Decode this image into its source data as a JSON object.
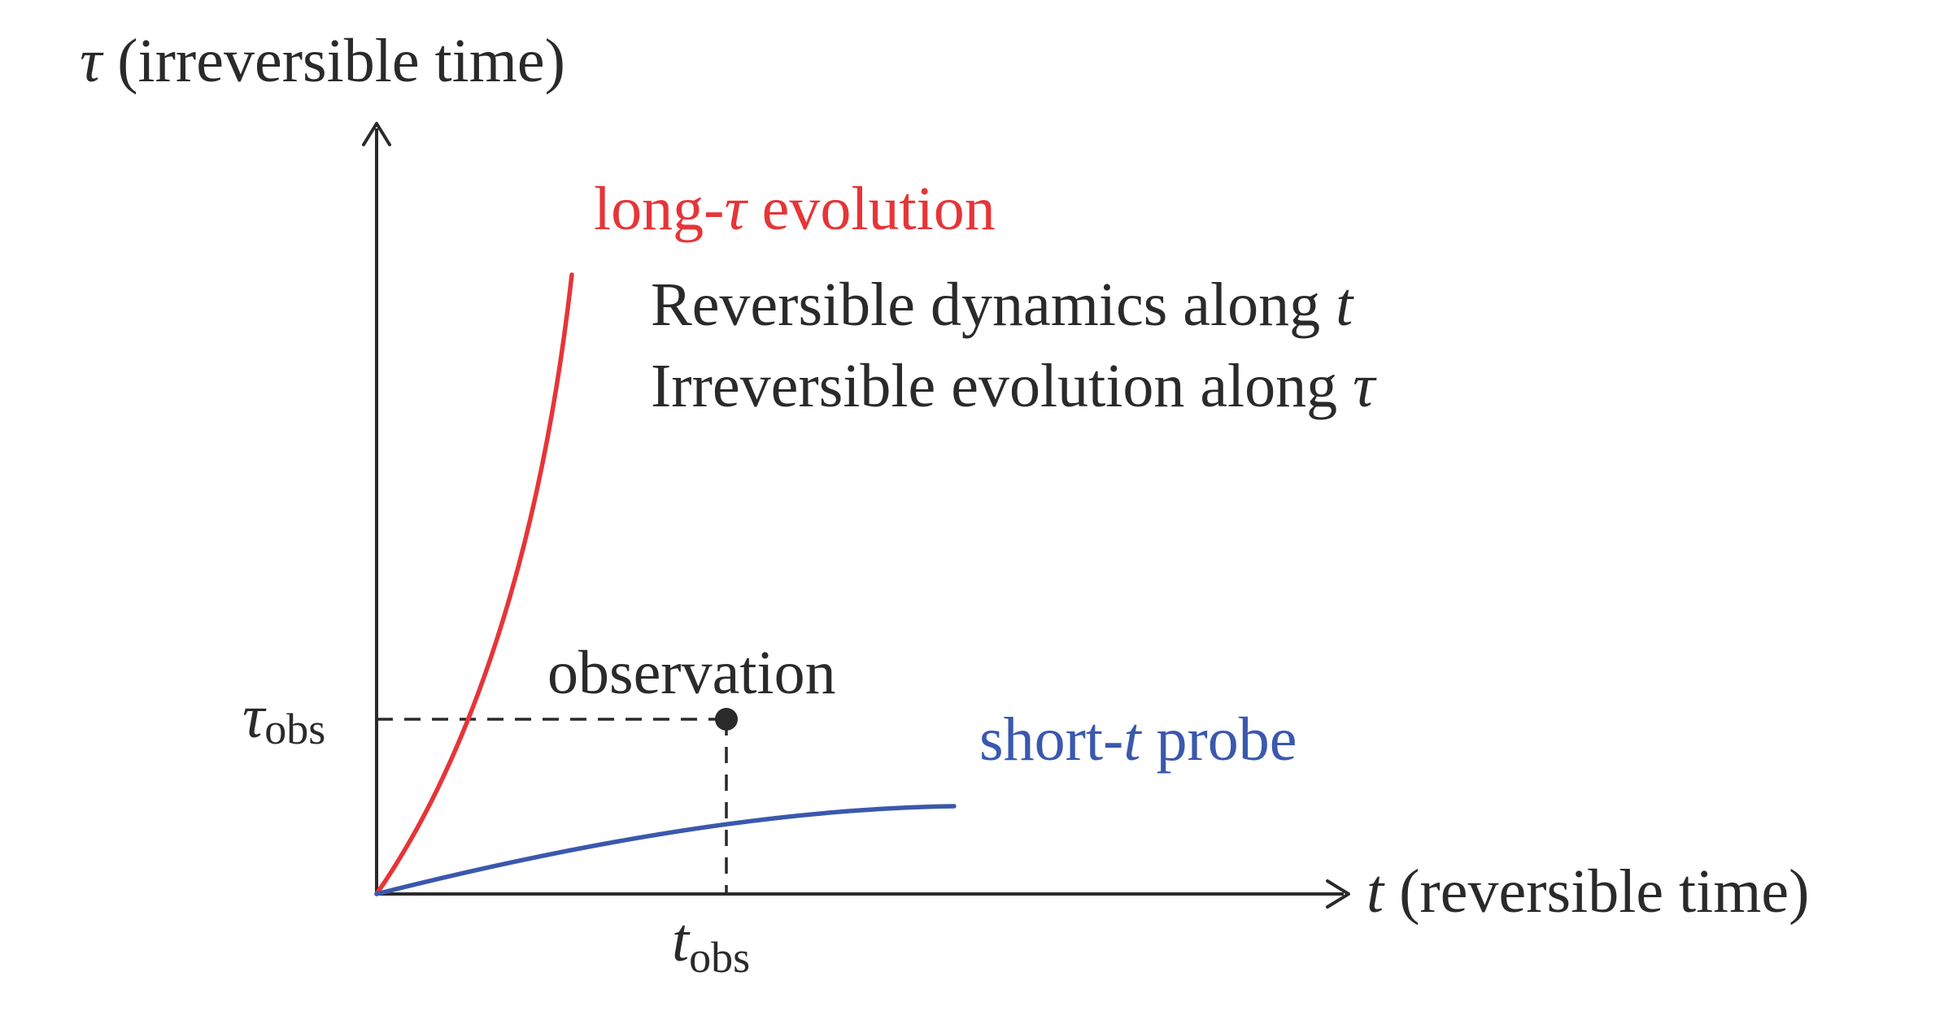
{
  "axes": {
    "y_symbol": "τ",
    "y_label": " (irreversible time)",
    "x_symbol": "t",
    "x_label": " (reversible time)"
  },
  "curves": {
    "long_tau": {
      "label_prefix": "long-",
      "label_symbol": "τ",
      "label_suffix": " evolution",
      "color": "#e63538"
    },
    "short_t": {
      "label_prefix": "short-",
      "label_symbol": "t",
      "label_suffix": " probe",
      "color": "#3a58ad"
    }
  },
  "notes": {
    "line1_text": "Reversible dynamics along ",
    "line1_symbol": "t",
    "line2_text": "Irreversible evolution along ",
    "line2_symbol": "τ"
  },
  "observation": {
    "label": "observation",
    "tau_symbol": "τ",
    "t_symbol": "t",
    "subscript": "obs"
  },
  "colors": {
    "ink": "#2a2a2a",
    "red": "#e63538",
    "blue": "#3a58ad"
  }
}
